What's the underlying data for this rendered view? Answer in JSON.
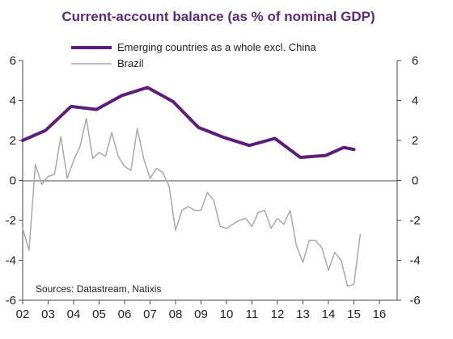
{
  "chart_data": {
    "type": "line",
    "title": "Current-account balance (as % of nominal GDP)",
    "source": "Sources: Datastream, Natixis",
    "xlim": [
      2002,
      2016.7
    ],
    "ylim": [
      -6,
      6
    ],
    "y_ticks": [
      6,
      4,
      2,
      0,
      -2,
      -4,
      -6
    ],
    "x_ticks": [
      {
        "label": "02",
        "value": 2002
      },
      {
        "label": "03",
        "value": 2003
      },
      {
        "label": "04",
        "value": 2004
      },
      {
        "label": "05",
        "value": 2005
      },
      {
        "label": "06",
        "value": 2006
      },
      {
        "label": "07",
        "value": 2007
      },
      {
        "label": "08",
        "value": 2008
      },
      {
        "label": "09",
        "value": 2009
      },
      {
        "label": "10",
        "value": 2010
      },
      {
        "label": "11",
        "value": 2011
      },
      {
        "label": "12",
        "value": 2012
      },
      {
        "label": "13",
        "value": 2013
      },
      {
        "label": "14",
        "value": 2014
      },
      {
        "label": "15",
        "value": 2015
      },
      {
        "label": "16",
        "value": 2016
      }
    ],
    "grid": false,
    "zero_line": true,
    "dual_y_axis": true,
    "legend_position": "top-left",
    "series": [
      {
        "name": "Emerging countries as a whole excl. China",
        "color": "#5b1f7a",
        "points": [
          [
            2002.0,
            2.0
          ],
          [
            2002.9,
            2.5
          ],
          [
            2003.9,
            3.7
          ],
          [
            2004.9,
            3.55
          ],
          [
            2005.9,
            4.25
          ],
          [
            2006.9,
            4.65
          ],
          [
            2007.9,
            3.95
          ],
          [
            2008.9,
            2.65
          ],
          [
            2009.9,
            2.15
          ],
          [
            2010.9,
            1.75
          ],
          [
            2011.9,
            2.1
          ],
          [
            2012.9,
            1.15
          ],
          [
            2013.9,
            1.25
          ],
          [
            2014.6,
            1.65
          ],
          [
            2015.0,
            1.55
          ]
        ]
      },
      {
        "name": "Brazil",
        "color": "#a9a9a9",
        "points": [
          [
            2002.0,
            -2.4
          ],
          [
            2002.25,
            -3.5
          ],
          [
            2002.5,
            0.8
          ],
          [
            2002.75,
            -0.2
          ],
          [
            2003.0,
            0.2
          ],
          [
            2003.25,
            0.3
          ],
          [
            2003.5,
            2.2
          ],
          [
            2003.75,
            0.1
          ],
          [
            2004.0,
            1.0
          ],
          [
            2004.25,
            1.7
          ],
          [
            2004.5,
            3.1
          ],
          [
            2004.75,
            1.1
          ],
          [
            2005.0,
            1.4
          ],
          [
            2005.25,
            1.2
          ],
          [
            2005.5,
            2.4
          ],
          [
            2005.75,
            1.2
          ],
          [
            2006.0,
            0.7
          ],
          [
            2006.25,
            0.5
          ],
          [
            2006.5,
            2.6
          ],
          [
            2006.75,
            1.1
          ],
          [
            2007.0,
            0.1
          ],
          [
            2007.25,
            0.6
          ],
          [
            2007.5,
            0.4
          ],
          [
            2007.75,
            -0.3
          ],
          [
            2008.0,
            -2.5
          ],
          [
            2008.25,
            -1.5
          ],
          [
            2008.5,
            -1.3
          ],
          [
            2008.75,
            -1.5
          ],
          [
            2009.0,
            -1.5
          ],
          [
            2009.25,
            -0.6
          ],
          [
            2009.5,
            -1.0
          ],
          [
            2009.75,
            -2.3
          ],
          [
            2010.0,
            -2.4
          ],
          [
            2010.25,
            -2.2
          ],
          [
            2010.5,
            -2.0
          ],
          [
            2010.75,
            -1.9
          ],
          [
            2011.0,
            -2.3
          ],
          [
            2011.25,
            -1.6
          ],
          [
            2011.5,
            -1.5
          ],
          [
            2011.75,
            -2.4
          ],
          [
            2012.0,
            -1.9
          ],
          [
            2012.25,
            -2.2
          ],
          [
            2012.5,
            -1.5
          ],
          [
            2012.75,
            -3.3
          ],
          [
            2013.0,
            -4.1
          ],
          [
            2013.25,
            -3.0
          ],
          [
            2013.5,
            -3.0
          ],
          [
            2013.75,
            -3.4
          ],
          [
            2014.0,
            -4.5
          ],
          [
            2014.25,
            -3.6
          ],
          [
            2014.5,
            -4.0
          ],
          [
            2014.75,
            -5.3
          ],
          [
            2015.0,
            -5.2
          ],
          [
            2015.25,
            -2.7
          ]
        ]
      }
    ]
  }
}
